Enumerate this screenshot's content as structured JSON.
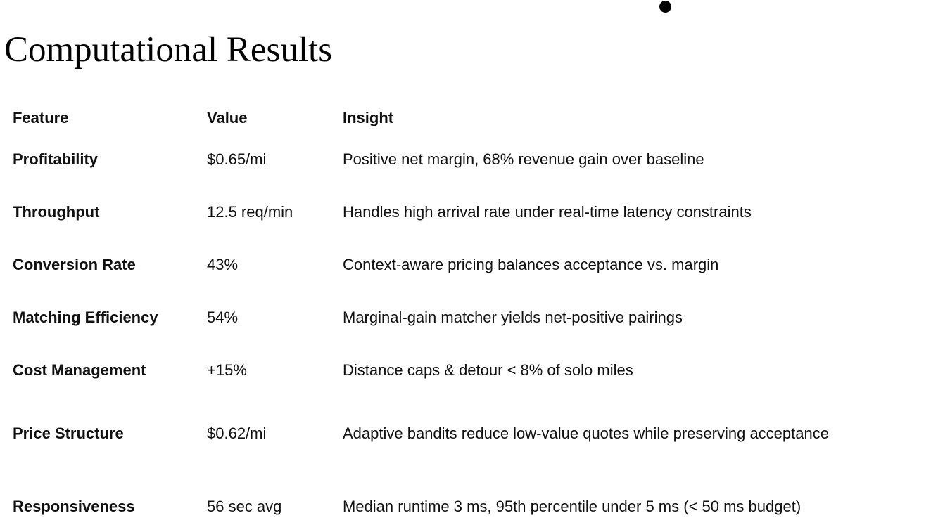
{
  "title": "Computational Results",
  "table": {
    "headers": {
      "feature": "Feature",
      "value": "Value",
      "insight": "Insight"
    },
    "rows": [
      {
        "feature": "Profitability",
        "value": "$0.65/mi",
        "insight": "Positive net margin, 68% revenue gain over baseline"
      },
      {
        "feature": "Throughput",
        "value": "12.5 req/min",
        "insight": "Handles high arrival rate under real-time latency constraints"
      },
      {
        "feature": "Conversion Rate",
        "value": "43%",
        "insight": "Context-aware pricing balances acceptance vs. margin"
      },
      {
        "feature": "Matching Efficiency",
        "value": "54%",
        "insight": "Marginal-gain matcher yields net-positive pairings"
      },
      {
        "feature": "Cost Management",
        "value": "+15%",
        "insight": "Distance caps & detour < 8% of solo miles"
      },
      {
        "feature": "Price Structure",
        "value": "$0.62/mi",
        "insight": "Adaptive bandits reduce low-value quotes while preserving acceptance"
      },
      {
        "feature": "Responsiveness",
        "value": "56 sec avg",
        "insight": "Median runtime 3 ms, 95th percentile under 5 ms (< 50 ms budget)"
      }
    ]
  }
}
